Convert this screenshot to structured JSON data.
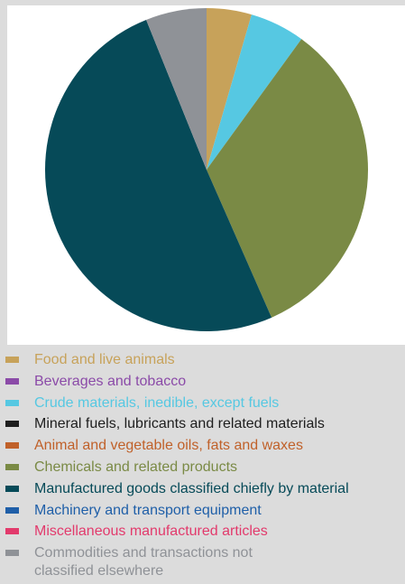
{
  "chart_data": {
    "type": "pie",
    "title": "",
    "slices": [
      {
        "label": "Food and live animals",
        "value": 4.5,
        "color": "#c7a25a"
      },
      {
        "label": "Beverages and tobacco",
        "value": 0,
        "color": "#8b4ba8"
      },
      {
        "label": "Crude materials, inedible, except fuels",
        "value": 5.5,
        "color": "#56c8e2"
      },
      {
        "label": "Mineral fuels, lubricants and related materials",
        "value": 0,
        "color": "#1e1e1e"
      },
      {
        "label": "Animal and vegetable oils, fats and waxes",
        "value": 0,
        "color": "#c0612a"
      },
      {
        "label": "Chemicals and related products",
        "value": 33.4,
        "color": "#7a8a45"
      },
      {
        "label": "Manufactured goods classified chiefly by material",
        "value": 50.5,
        "color": "#064a58"
      },
      {
        "label": "Machinery and transport equipment",
        "value": 0,
        "color": "#1f5fa8"
      },
      {
        "label": "Miscellaneous manufactured articles",
        "value": 0,
        "color": "#e23a6c"
      },
      {
        "label": "Commodities and transactions not\nclassified elsewhere",
        "value": 6.1,
        "color": "#8f9297"
      }
    ],
    "legend_position": "bottom"
  }
}
